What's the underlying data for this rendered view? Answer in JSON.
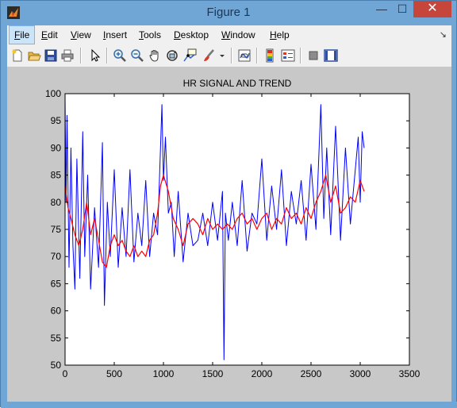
{
  "window": {
    "title": "Figure 1"
  },
  "controls": {
    "minimize": "—",
    "maximize": "☐",
    "close": "✕"
  },
  "menu": {
    "items": [
      {
        "label_u": "F",
        "label_rest": "ile"
      },
      {
        "label_u": "E",
        "label_rest": "dit"
      },
      {
        "label_u": "V",
        "label_rest": "iew"
      },
      {
        "label_u": "I",
        "label_rest": "nsert"
      },
      {
        "label_u": "T",
        "label_rest": "ools"
      },
      {
        "label_u": "D",
        "label_rest": "esktop"
      },
      {
        "label_u": "W",
        "label_rest": "indow"
      },
      {
        "label_u": "H",
        "label_rest": "elp"
      }
    ]
  },
  "toolbar": {
    "icons": [
      "new-figure-icon",
      "open-file-icon",
      "save-icon",
      "print-icon",
      "edit-plot-arrow-icon",
      "zoom-in-icon",
      "zoom-out-icon",
      "pan-hand-icon",
      "rotate-3d-icon",
      "data-cursor-icon",
      "brush-icon",
      "brush-dropdown-icon",
      "link-plot-icon",
      "colorbar-icon",
      "legend-icon",
      "hide-plot-tools-icon",
      "show-plot-tools-icon"
    ]
  },
  "chart_data": {
    "type": "line",
    "title": "HR SIGNAL AND TREND",
    "xlim": [
      0,
      3500
    ],
    "ylim": [
      50,
      100
    ],
    "xticks": [
      0,
      500,
      1000,
      1500,
      2000,
      2500,
      3000,
      3500
    ],
    "yticks": [
      50,
      55,
      60,
      65,
      70,
      75,
      80,
      85,
      90,
      95,
      100
    ],
    "series": [
      {
        "color": "#0000ff",
        "x": [
          0,
          10,
          20,
          40,
          60,
          80,
          100,
          120,
          150,
          180,
          200,
          230,
          260,
          300,
          340,
          380,
          400,
          430,
          460,
          500,
          540,
          580,
          620,
          660,
          700,
          740,
          780,
          820,
          860,
          900,
          940,
          970,
          985,
          1000,
          1020,
          1050,
          1080,
          1110,
          1150,
          1200,
          1250,
          1300,
          1350,
          1400,
          1450,
          1500,
          1550,
          1600,
          1615,
          1630,
          1660,
          1700,
          1750,
          1800,
          1850,
          1900,
          1950,
          2000,
          2050,
          2100,
          2150,
          2200,
          2250,
          2300,
          2350,
          2400,
          2450,
          2500,
          2550,
          2600,
          2630,
          2660,
          2700,
          2750,
          2800,
          2850,
          2900,
          2950,
          2980,
          3000,
          3020,
          3040
        ],
        "y": [
          99,
          80,
          96,
          68,
          90,
          72,
          64,
          88,
          66,
          93,
          70,
          85,
          64,
          79,
          68,
          91,
          61,
          80,
          70,
          86,
          68,
          79,
          70,
          86,
          69,
          78,
          72,
          84,
          70,
          78,
          74,
          90,
          98,
          84,
          92,
          78,
          80,
          70,
          82,
          69,
          78,
          72,
          73,
          78,
          72,
          80,
          73,
          82,
          51,
          78,
          73,
          80,
          72,
          84,
          71,
          78,
          76,
          88,
          73,
          83,
          75,
          86,
          72,
          82,
          76,
          84,
          73,
          87,
          75,
          98,
          77,
          90,
          74,
          94,
          73,
          90,
          76,
          86,
          92,
          80,
          93,
          90
        ]
      },
      {
        "color": "#ff0000",
        "x": [
          0,
          30,
          60,
          100,
          140,
          180,
          220,
          260,
          300,
          340,
          380,
          420,
          460,
          500,
          540,
          580,
          620,
          660,
          700,
          740,
          780,
          820,
          860,
          900,
          940,
          970,
          1000,
          1050,
          1100,
          1150,
          1200,
          1250,
          1300,
          1350,
          1400,
          1450,
          1500,
          1550,
          1600,
          1650,
          1700,
          1750,
          1800,
          1850,
          1900,
          1950,
          2000,
          2050,
          2100,
          2150,
          2200,
          2250,
          2300,
          2350,
          2400,
          2450,
          2500,
          2550,
          2600,
          2650,
          2700,
          2750,
          2800,
          2850,
          2900,
          2950,
          3000,
          3040
        ],
        "y": [
          83,
          79,
          77,
          74,
          72,
          75,
          80,
          74,
          77,
          73,
          69,
          68,
          72,
          74,
          72,
          73,
          71,
          70,
          72,
          70,
          71,
          70,
          73,
          74,
          78,
          83,
          85,
          82,
          77,
          75,
          72,
          76,
          77,
          76,
          74,
          77,
          75,
          76,
          75,
          76,
          75,
          77,
          78,
          76,
          77,
          75,
          77,
          78,
          75,
          77,
          76,
          79,
          77,
          78,
          76,
          79,
          77,
          80,
          82,
          85,
          80,
          83,
          78,
          79,
          81,
          80,
          84,
          82
        ]
      }
    ]
  }
}
